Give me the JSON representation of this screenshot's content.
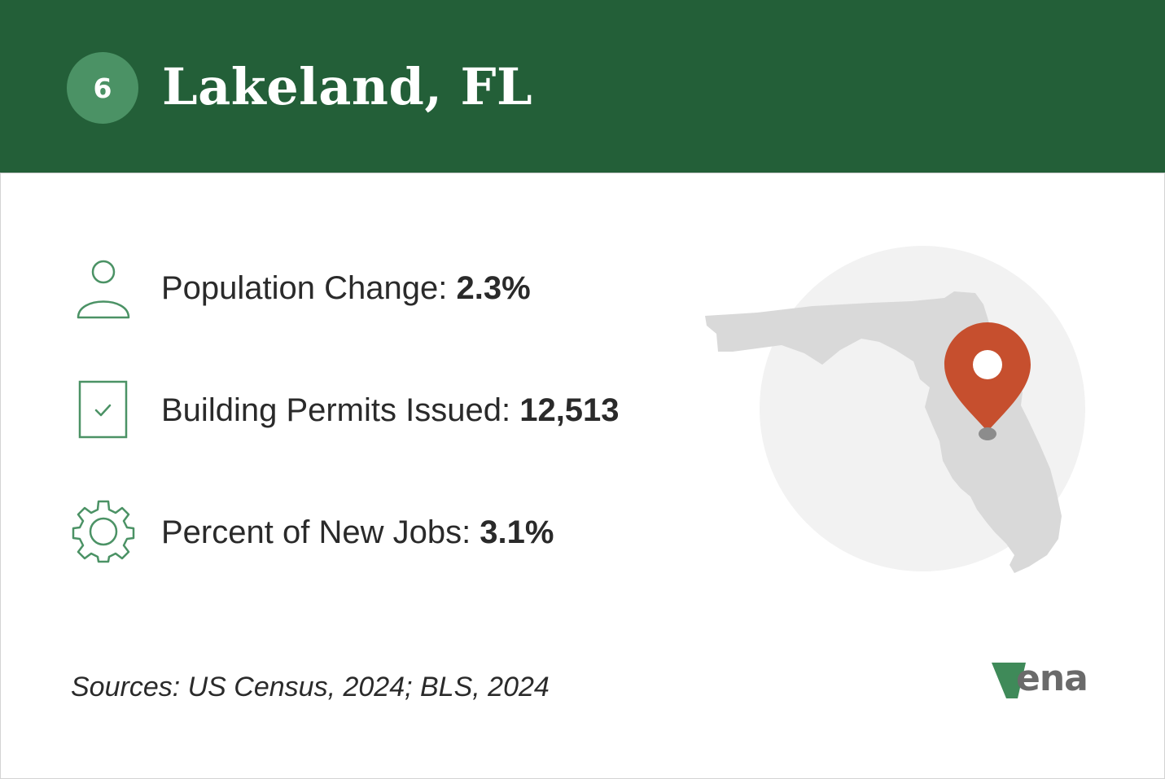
{
  "header": {
    "rank": "6",
    "city": "Lakeland, FL"
  },
  "stats": [
    {
      "label": "Population Change: ",
      "value": "2.3%",
      "icon": "person-icon"
    },
    {
      "label": "Building Permits Issued: ",
      "value": "12,513",
      "icon": "checklist-icon"
    },
    {
      "label": "Percent of New Jobs: ",
      "value": "3.1%",
      "icon": "gear-icon"
    }
  ],
  "sources": "Sources: US Census, 2024; BLS, 2024",
  "logo": {
    "text": "ena",
    "mark": "V"
  },
  "colors": {
    "header_green": "#235f38",
    "badge_green": "#4b9265",
    "icon_green": "#4b9265",
    "pin_red": "#c64f2e",
    "map_gray": "#d9d9d9",
    "circle_gray": "#f2f2f2"
  }
}
